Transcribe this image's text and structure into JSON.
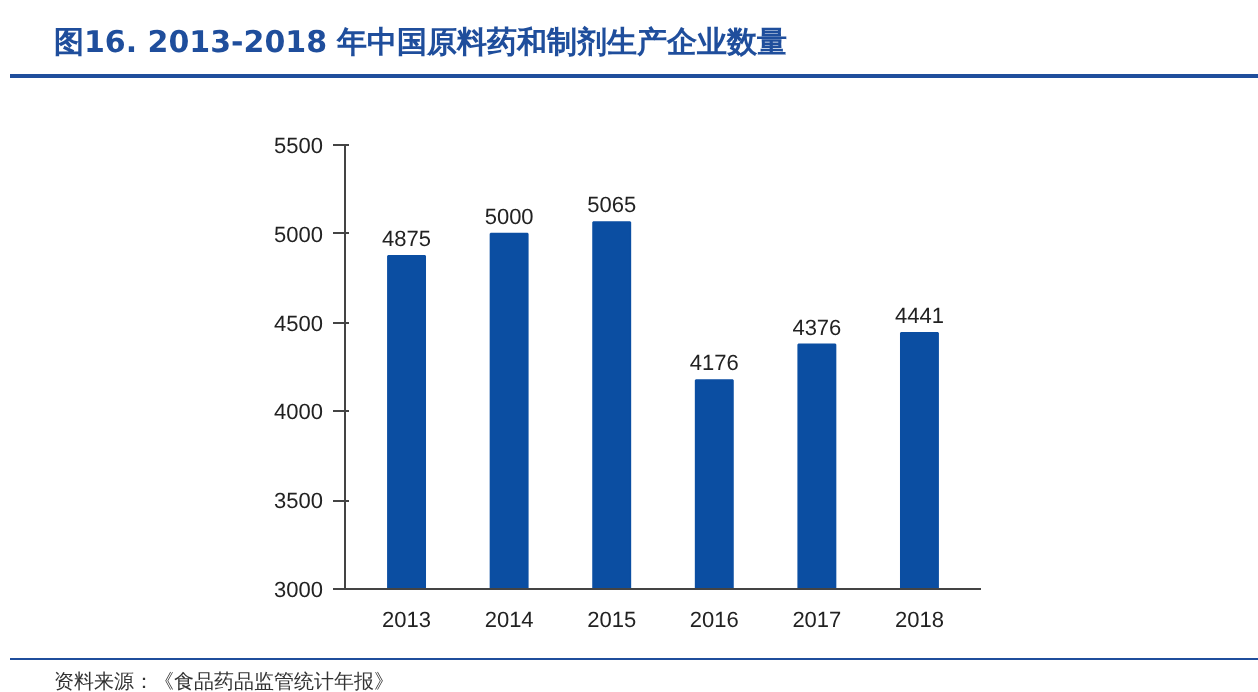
{
  "chart_data": {
    "type": "bar",
    "title": "图16. 2013-2018 年中国原料药和制剂生产企业数量",
    "categories": [
      "2013",
      "2014",
      "2015",
      "2016",
      "2017",
      "2018"
    ],
    "values": [
      4875,
      5000,
      5065,
      4176,
      4376,
      4441
    ],
    "color": "#0b4ea2",
    "ylim": [
      3000,
      5500
    ],
    "yticks": [
      3000,
      3500,
      4000,
      4500,
      5000,
      5500
    ],
    "data_labels": true,
    "annotations": [
      "资料来源：《食品药品监管统计年报》"
    ]
  }
}
